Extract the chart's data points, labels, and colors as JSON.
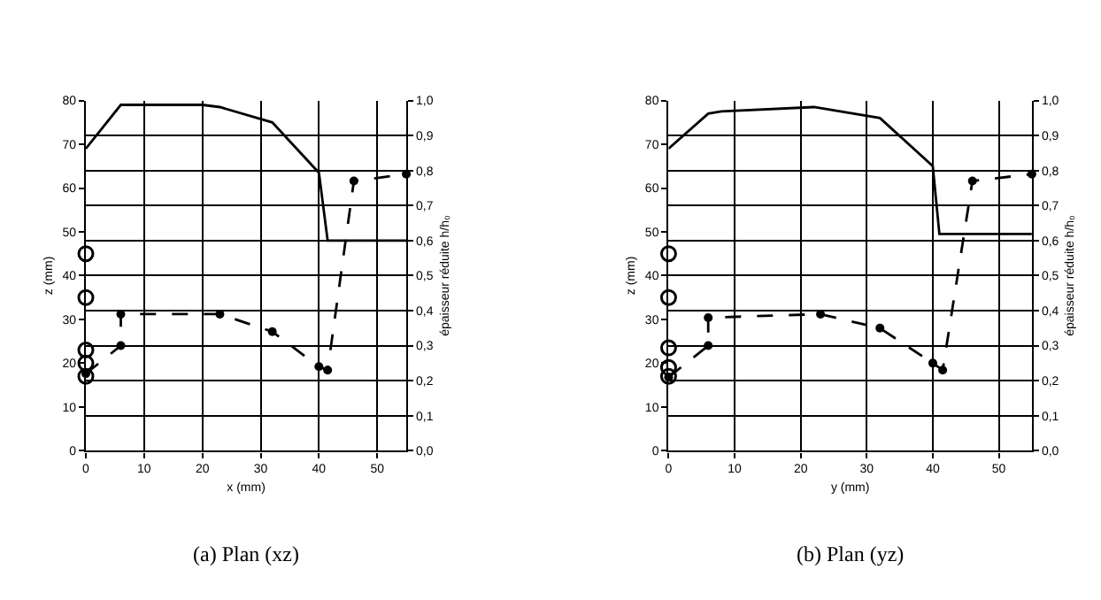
{
  "chart_data": [
    {
      "type": "line",
      "title": "(a) Plan (xz)",
      "xlabel": "x (mm)",
      "ylabel": "z (mm)",
      "y2label": "épaisseur réduite h/h₀",
      "xlim": [
        0,
        55
      ],
      "xticks": [
        0,
        10,
        20,
        30,
        40,
        50
      ],
      "ylim": [
        0,
        80
      ],
      "yticks": [
        0,
        10,
        20,
        30,
        40,
        50,
        60,
        70,
        80
      ],
      "y2lim": [
        0,
        1
      ],
      "y2ticks": [
        {
          "value": 0,
          "label": "0,0"
        },
        {
          "value": 0.1,
          "label": "0,1"
        },
        {
          "value": 0.2,
          "label": "0,2"
        },
        {
          "value": 0.3,
          "label": "0,3"
        },
        {
          "value": 0.4,
          "label": "0,4"
        },
        {
          "value": 0.5,
          "label": "0,5"
        },
        {
          "value": 0.6,
          "label": "0,6"
        },
        {
          "value": 0.7,
          "label": "0,7"
        },
        {
          "value": 0.8,
          "label": "0,8"
        },
        {
          "value": 0.9,
          "label": "0,9"
        },
        {
          "value": 1,
          "label": "1,0"
        }
      ],
      "grid": true,
      "series": [
        {
          "color": "#000000",
          "marker": "none",
          "line_style": "solid",
          "x": [
            0,
            6,
            20,
            23,
            32,
            40,
            41.5,
            55
          ],
          "values": [
            69,
            79,
            79,
            78.5,
            75,
            63.5,
            48,
            48
          ]
        },
        {
          "color": "#000000",
          "marker": "circle",
          "line_style": "dashed",
          "axis": "y2",
          "x": [
            0,
            6,
            6,
            23,
            32,
            40,
            41.5,
            46,
            55
          ],
          "values": [
            0.22,
            0.3,
            0.39,
            0.39,
            0.34,
            0.24,
            0.23,
            0.77,
            0.79
          ]
        },
        {
          "type": "scatter",
          "color": "#000000",
          "marker": "circle",
          "x": [
            0,
            0,
            0,
            0,
            0
          ],
          "values": [
            45,
            35,
            23,
            20,
            17
          ]
        }
      ]
    },
    {
      "type": "line",
      "title": "(b) Plan (yz)",
      "xlabel": "y (mm)",
      "ylabel": "z (mm)",
      "y2label": "épaisseur réduite h/h₀",
      "xlim": [
        0,
        55
      ],
      "xticks": [
        0,
        10,
        20,
        30,
        40,
        50
      ],
      "ylim": [
        0,
        80
      ],
      "yticks": [
        0,
        10,
        20,
        30,
        40,
        50,
        60,
        70,
        80
      ],
      "y2lim": [
        0,
        1
      ],
      "y2ticks": [
        {
          "value": 0,
          "label": "0,0"
        },
        {
          "value": 0.1,
          "label": "0,1"
        },
        {
          "value": 0.2,
          "label": "0,2"
        },
        {
          "value": 0.3,
          "label": "0,3"
        },
        {
          "value": 0.4,
          "label": "0,4"
        },
        {
          "value": 0.5,
          "label": "0,5"
        },
        {
          "value": 0.6,
          "label": "0,6"
        },
        {
          "value": 0.7,
          "label": "0,7"
        },
        {
          "value": 0.8,
          "label": "0,8"
        },
        {
          "value": 0.9,
          "label": "0,9"
        },
        {
          "value": 1,
          "label": "1,0"
        }
      ],
      "grid": true,
      "series": [
        {
          "color": "#000000",
          "marker": "none",
          "line_style": "solid",
          "x": [
            0,
            6,
            8,
            22,
            32,
            40,
            41,
            55
          ],
          "values": [
            69,
            77,
            77.5,
            78.5,
            76,
            65,
            49.5,
            49.5
          ]
        },
        {
          "color": "#000000",
          "marker": "circle",
          "line_style": "dashed",
          "axis": "y2",
          "x": [
            0,
            6,
            6,
            23,
            32,
            40,
            41.5,
            46,
            55
          ],
          "values": [
            0.21,
            0.3,
            0.38,
            0.39,
            0.35,
            0.25,
            0.23,
            0.77,
            0.79
          ]
        },
        {
          "type": "scatter",
          "color": "#000000",
          "marker": "circle",
          "x": [
            0,
            0,
            0,
            0,
            0
          ],
          "values": [
            45,
            35,
            23.5,
            19,
            17
          ]
        }
      ]
    }
  ]
}
